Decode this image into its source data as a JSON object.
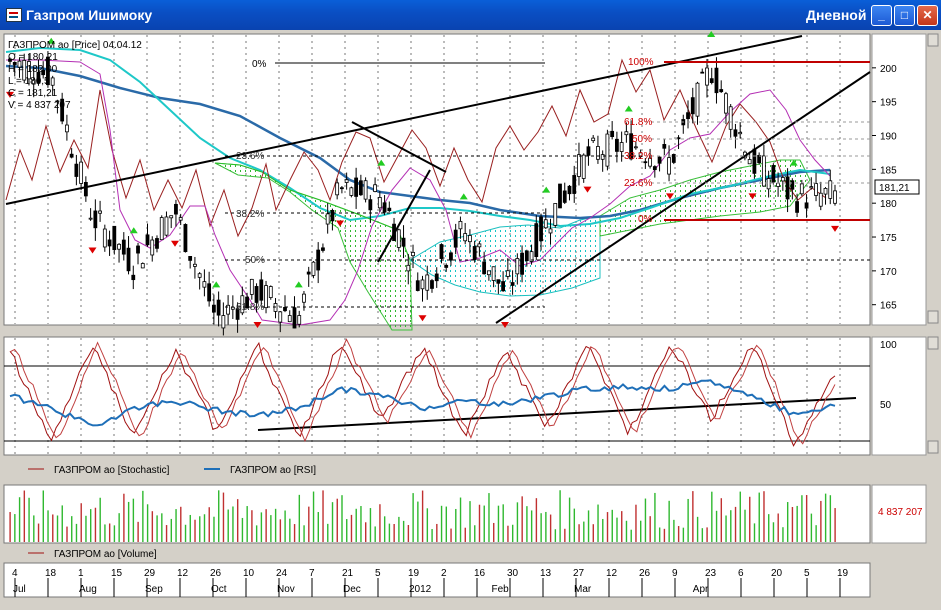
{
  "window": {
    "title": "Газпром Ишимоку",
    "period": "Дневной",
    "buttons": [
      "_",
      "□",
      "✕"
    ]
  },
  "info": {
    "symbol_line": "ГАЗПРОМ ао [Price] 04.04.12",
    "o": "O = 180,21",
    "h": "H = 182,00",
    "l": "L = 180,5",
    "c": "C = 181,21",
    "v": "V = 4 837 207"
  },
  "price_axis": {
    "ticks": [
      "200",
      "195",
      "190",
      "185",
      "180",
      "175",
      "170",
      "165"
    ],
    "last_price": "181,21"
  },
  "fib_labels": [
    "0%",
    "23.6%",
    "38.2%",
    "50%",
    "61.8%",
    "100%",
    "61.8%",
    "50%",
    "38.2%",
    "23.6%",
    "0%"
  ],
  "osc_axis": {
    "ticks": [
      "100",
      "50"
    ]
  },
  "legend": {
    "stochastic": "ГАЗПРОМ ао [Stochastic]",
    "rsi": "ГАЗПРОМ ао [RSI]",
    "volume": "ГАЗПРОМ ао [Volume]"
  },
  "volume_axis": {
    "last_value": "4 837 207"
  },
  "date_axis": {
    "days": [
      "4",
      "18",
      "1",
      "15",
      "29",
      "12",
      "26",
      "10",
      "24",
      "7",
      "21",
      "5",
      "19",
      "2",
      "16",
      "30",
      "13",
      "27",
      "12",
      "26",
      "9",
      "23",
      "6",
      "20",
      "5",
      "19"
    ],
    "months": [
      "Jul",
      "Aug",
      "Sep",
      "Oct",
      "Nov",
      "Dec",
      "2012",
      "Feb",
      "Mar",
      "Apr"
    ]
  },
  "colors": {
    "background": "#ffffff",
    "stochastic": "#a01010",
    "rsi": "#1e6fb8",
    "kijun": "#2a5f9a",
    "tenkan": "#b42fb4",
    "cloud_bull": "#2db52d",
    "cloud_bear": "#19c6c6",
    "trendline": "#000000",
    "resistance": "#c00000"
  },
  "chart_data": {
    "type": "candlestick",
    "x": [
      "2011-07-04",
      "2011-07-18",
      "2011-08-01",
      "2011-08-15",
      "2011-08-29",
      "2011-09-12",
      "2011-09-26",
      "2011-10-10",
      "2011-10-24",
      "2011-11-07",
      "2011-11-21",
      "2011-12-05",
      "2011-12-19",
      "2012-01-02",
      "2012-01-16",
      "2012-01-30",
      "2012-02-13",
      "2012-02-27",
      "2012-03-12",
      "2012-03-26",
      "2012-04-04"
    ],
    "close": [
      201,
      199,
      178,
      171,
      179,
      163,
      167,
      163,
      182,
      181,
      168,
      176,
      167,
      177,
      187,
      189,
      186,
      200,
      186,
      181,
      181.21
    ],
    "price_ylim": [
      162,
      205
    ],
    "ohlc_last": {
      "date": "04.04.12",
      "open": 180.21,
      "high": 182.0,
      "low": 180.5,
      "close": 181.21,
      "volume": 4837207
    },
    "oscillator": {
      "ylim": [
        0,
        100
      ],
      "series": [
        {
          "name": "ГАЗПРОМ ао [Stochastic]",
          "values": [
            88,
            12,
            95,
            14,
            88,
            20,
            94,
            12,
            96,
            28,
            92,
            14,
            90,
            22,
            94,
            18,
            96,
            30,
            95,
            8,
            70
          ]
        },
        {
          "name": "ГАЗПРОМ ао [RSI]",
          "values": [
            50,
            40,
            24,
            40,
            46,
            38,
            33,
            40,
            56,
            50,
            40,
            46,
            43,
            50,
            56,
            58,
            56,
            62,
            50,
            35,
            42
          ]
        }
      ],
      "reference_lines": [
        20,
        80
      ]
    },
    "volume": {
      "last": 4837207
    }
  }
}
